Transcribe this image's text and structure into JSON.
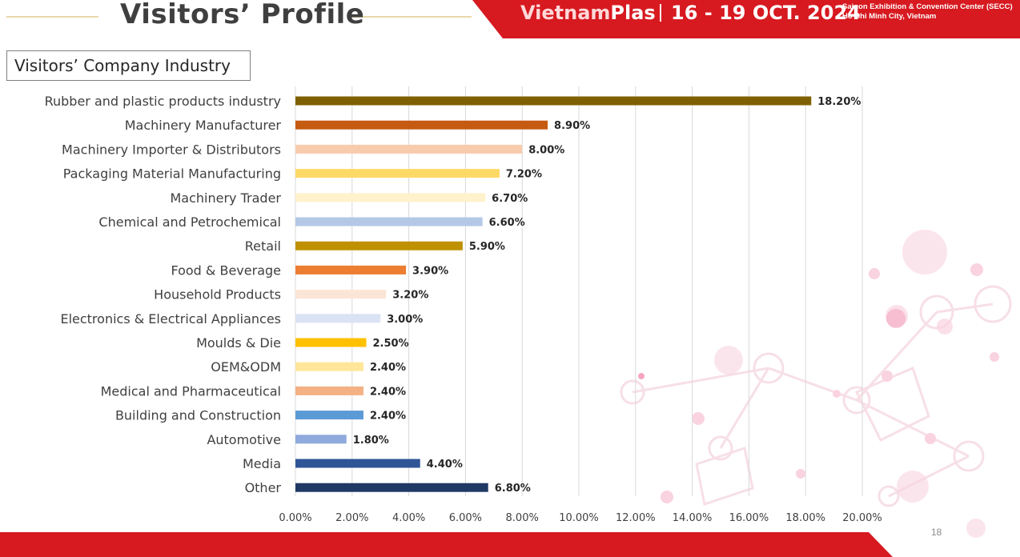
{
  "header": {
    "title": "Visitors’ Profile",
    "brand_part1": "Vietnam",
    "brand_part2": "Plas",
    "dates": "16 - 19 OCT. 2024",
    "venue_line1": "Saigon Exhibition & Convention Center (SECC)",
    "venue_line2": "Ho Chi Minh City, Vietnam"
  },
  "section_title": "Visitors’ Company Industry",
  "page_number": "18",
  "colors": {
    "brand_red": "#d71920"
  },
  "chart_data": {
    "type": "bar",
    "orientation": "horizontal",
    "categories": [
      "Rubber and plastic products industry",
      "Machinery Manufacturer",
      "Machinery Importer & Distributors",
      "Packaging Material Manufacturing",
      "Machinery Trader",
      "Chemical and Petrochemical",
      "Retail",
      "Food & Beverage",
      "Household Products",
      "Electronics & Electrical Appliances",
      "Moulds & Die",
      "OEM&ODM",
      "Medical and Pharmaceutical",
      "Building and Construction",
      "Automotive",
      "Media",
      "Other"
    ],
    "values": [
      18.2,
      8.9,
      8.0,
      7.2,
      6.7,
      6.6,
      5.9,
      3.9,
      3.2,
      3.0,
      2.5,
      2.4,
      2.4,
      2.4,
      1.8,
      4.4,
      6.8
    ],
    "value_labels": [
      "18.20%",
      "8.90%",
      "8.00%",
      "7.20%",
      "6.70%",
      "6.60%",
      "5.90%",
      "3.90%",
      "3.20%",
      "3.00%",
      "2.50%",
      "2.40%",
      "2.40%",
      "2.40%",
      "1.80%",
      "4.40%",
      "6.80%"
    ],
    "bar_colors": [
      "#7f6000",
      "#c55a11",
      "#f8cbad",
      "#ffd966",
      "#fff2cc",
      "#b4c7e7",
      "#bf9000",
      "#ed7d31",
      "#fbe5d6",
      "#dae3f3",
      "#ffc000",
      "#ffe699",
      "#f4b183",
      "#5b9bd5",
      "#8faadc",
      "#2f5597",
      "#203864"
    ],
    "xlim": [
      0,
      20
    ],
    "xticks": [
      "0.00%",
      "2.00%",
      "4.00%",
      "6.00%",
      "8.00%",
      "10.00%",
      "12.00%",
      "14.00%",
      "16.00%",
      "18.00%",
      "20.00%"
    ],
    "grid": "vertical",
    "legend": "none"
  }
}
